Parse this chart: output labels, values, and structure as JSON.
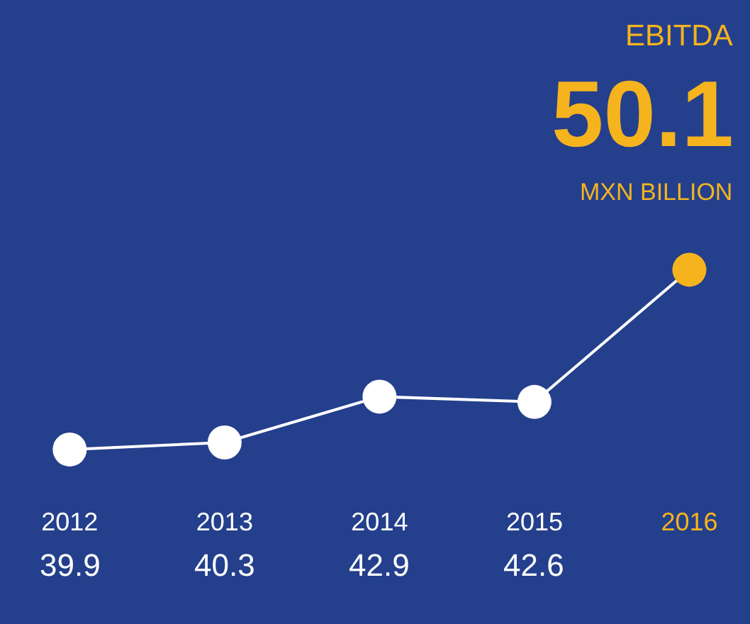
{
  "chart_data": {
    "type": "line",
    "title": "EBITDA",
    "subtitle": "MXN BILLION",
    "annotations": [
      "50.1"
    ],
    "categories": [
      "2012",
      "2013",
      "2014",
      "2015",
      "2016"
    ],
    "values": [
      39.9,
      40.3,
      42.9,
      42.6,
      50.1
    ],
    "value_labels": [
      "39.9",
      "40.3",
      "42.9",
      "42.6",
      null
    ],
    "color": "#ffffff",
    "colors": [
      "#ffffff",
      "#ffffff",
      "#ffffff",
      "#ffffff",
      "#f5b41e"
    ],
    "marker": "circle",
    "line_style": "solid",
    "grid": false,
    "legend": false
  }
}
